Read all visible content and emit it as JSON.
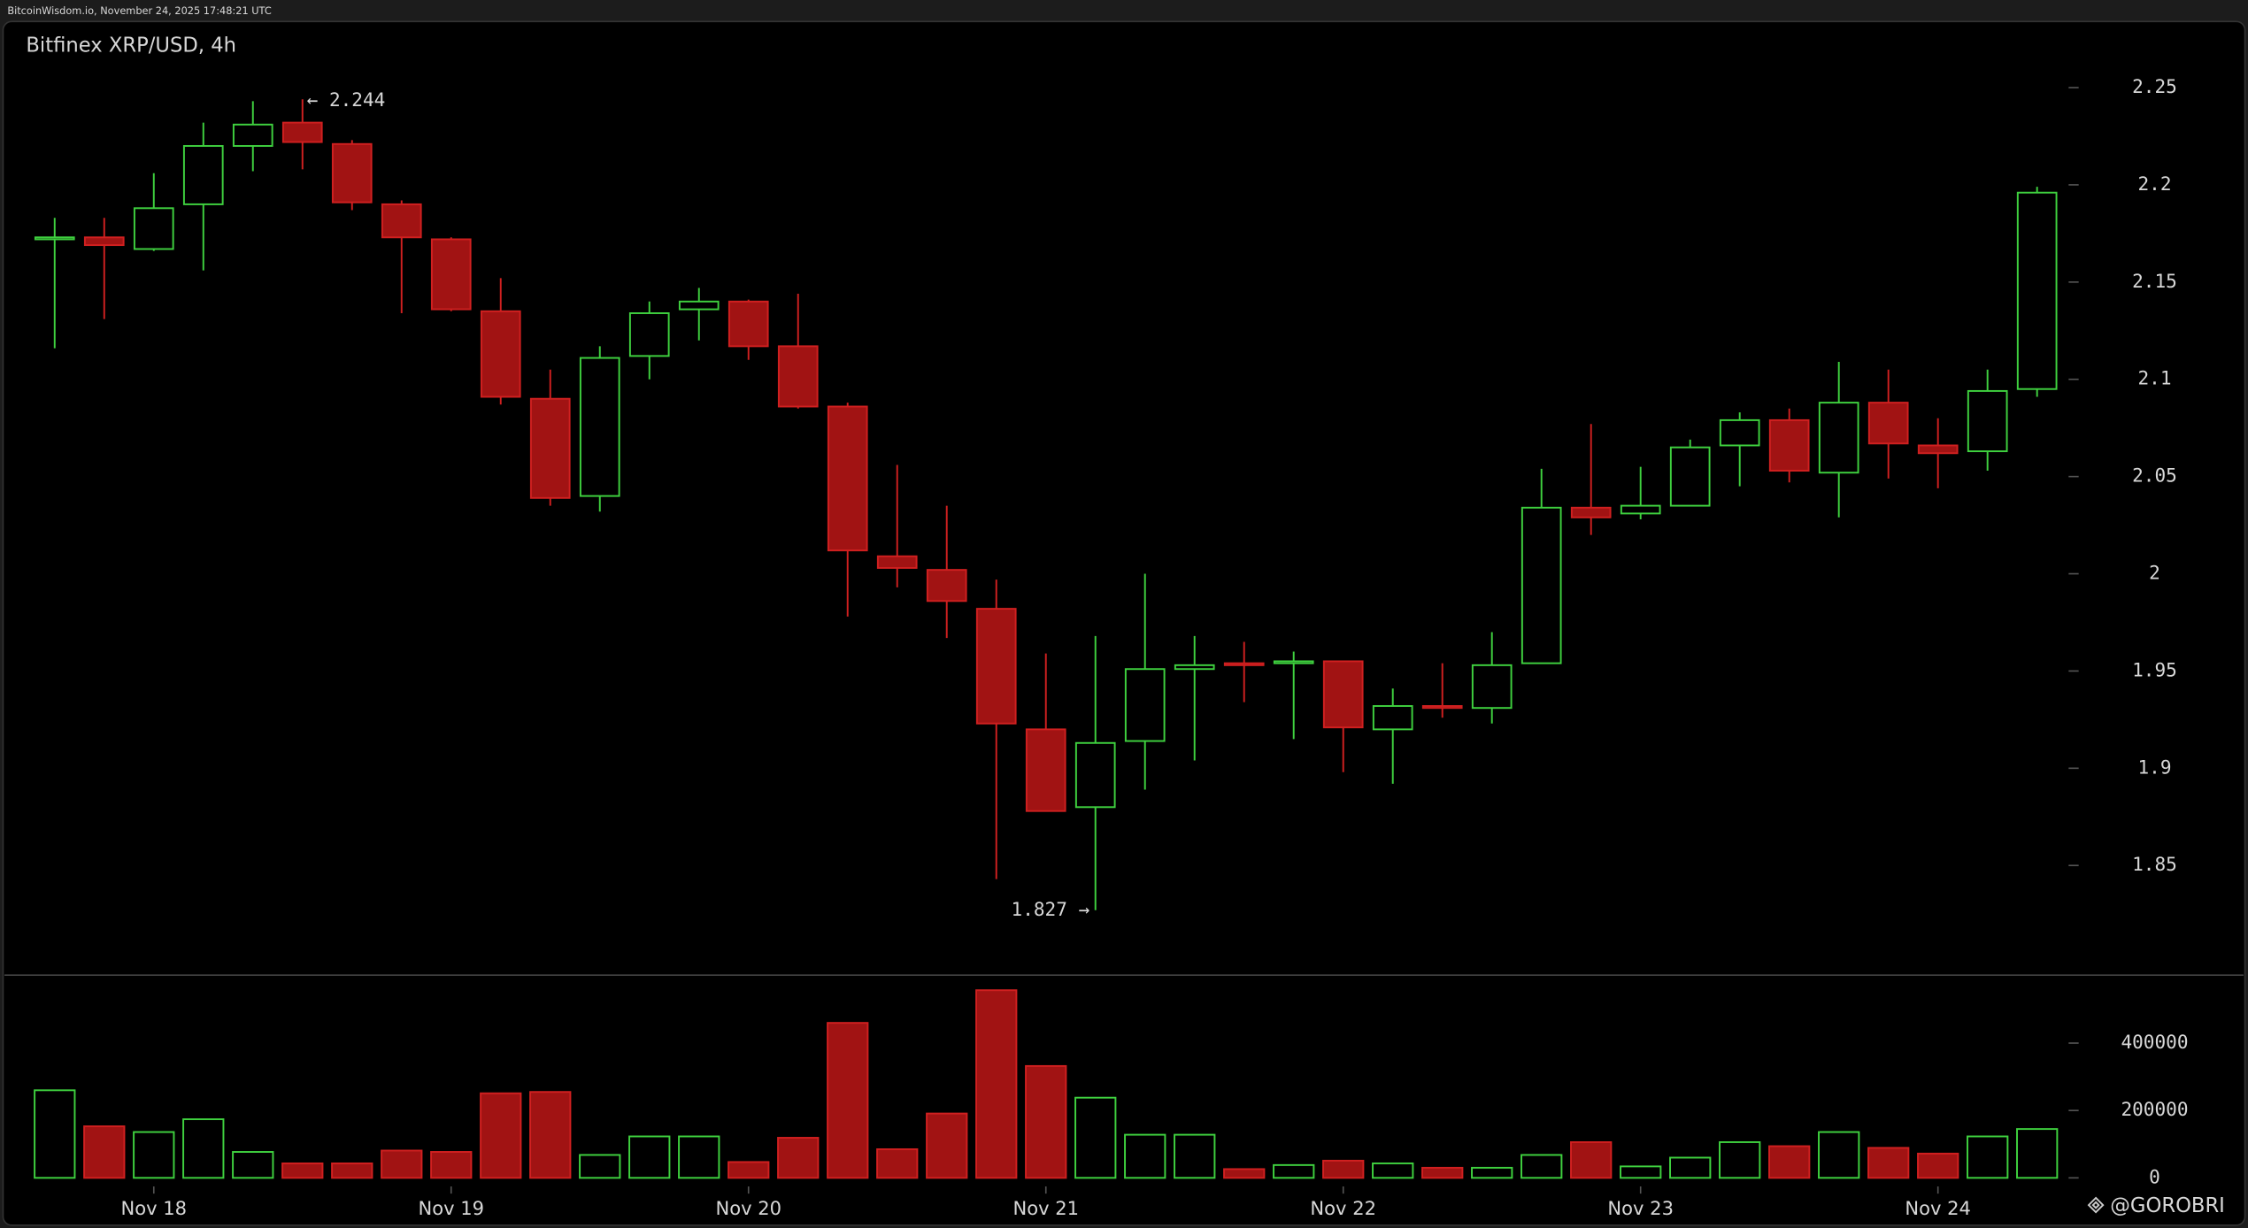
{
  "header": "BitcoinWisdom.io, November 24, 2025 17:48:21 UTC",
  "watermark": "@GOROBRI",
  "chart_data": {
    "type": "candlestick",
    "title": "Bitfinex XRP/USD, 4h",
    "categories": [
      null,
      null,
      "Nov 18",
      null,
      null,
      null,
      null,
      null,
      "Nov 19",
      null,
      null,
      null,
      null,
      null,
      "Nov 20",
      null,
      null,
      null,
      null,
      null,
      "Nov 21",
      null,
      null,
      null,
      null,
      null,
      "Nov 22",
      null,
      null,
      null,
      null,
      null,
      "Nov 23",
      null,
      null,
      null,
      null,
      null,
      "Nov 24",
      null,
      null
    ],
    "open": [
      2.172,
      2.173,
      2.167,
      2.19,
      2.22,
      2.232,
      2.221,
      2.19,
      2.172,
      2.135,
      2.09,
      2.04,
      2.112,
      2.136,
      2.14,
      2.117,
      2.086,
      2.009,
      2.002,
      1.982,
      1.92,
      1.88,
      1.914,
      1.951,
      1.954,
      1.954,
      1.955,
      1.92,
      1.932,
      1.931,
      1.954,
      2.034,
      2.031,
      2.035,
      2.066,
      2.079,
      2.052,
      2.088,
      2.066,
      2.063,
      2.095
    ],
    "high": [
      2.183,
      2.183,
      2.206,
      2.232,
      2.243,
      2.244,
      2.223,
      2.192,
      2.173,
      2.152,
      2.105,
      2.117,
      2.14,
      2.147,
      2.141,
      2.144,
      2.088,
      2.056,
      2.035,
      1.997,
      1.959,
      1.968,
      2.0,
      1.968,
      1.965,
      1.96,
      1.955,
      1.941,
      1.954,
      1.97,
      2.054,
      2.077,
      2.055,
      2.069,
      2.083,
      2.085,
      2.109,
      2.105,
      2.08,
      2.105,
      2.199
    ],
    "low": [
      2.116,
      2.131,
      2.166,
      2.156,
      2.207,
      2.208,
      2.187,
      2.134,
      2.135,
      2.087,
      2.035,
      2.032,
      2.1,
      2.12,
      2.11,
      2.085,
      1.978,
      1.993,
      1.967,
      1.843,
      1.878,
      1.827,
      1.889,
      1.904,
      1.934,
      1.915,
      1.898,
      1.892,
      1.926,
      1.923,
      1.954,
      2.02,
      2.028,
      2.035,
      2.045,
      2.047,
      2.029,
      2.049,
      2.044,
      2.053,
      2.091
    ],
    "close": [
      2.173,
      2.169,
      2.188,
      2.22,
      2.231,
      2.222,
      2.191,
      2.173,
      2.136,
      2.091,
      2.039,
      2.111,
      2.134,
      2.14,
      2.117,
      2.086,
      2.012,
      2.003,
      1.986,
      1.923,
      1.878,
      1.913,
      1.951,
      1.953,
      1.953,
      1.955,
      1.921,
      1.932,
      1.931,
      1.953,
      2.034,
      2.029,
      2.035,
      2.065,
      2.079,
      2.053,
      2.088,
      2.067,
      2.062,
      2.094,
      2.196
    ],
    "volume": [
      260000,
      153000,
      136000,
      174000,
      77000,
      43000,
      43000,
      81000,
      77000,
      251000,
      255000,
      68000,
      123000,
      123000,
      47000,
      119000,
      460000,
      85000,
      191000,
      557000,
      332000,
      238000,
      128000,
      128000,
      26000,
      38000,
      51000,
      43000,
      30000,
      30000,
      68000,
      106000,
      34000,
      60000,
      106000,
      94000,
      136000,
      89000,
      72000,
      123000,
      145000
    ],
    "high_label": "← 2.244",
    "low_label": "1.827 →",
    "ylim": [
      1.794,
      2.284
    ],
    "yticks": [
      1.85,
      1.9,
      1.95,
      2,
      2.05,
      2.1,
      2.15,
      2.2,
      2.25
    ],
    "y2lim": [
      -34000,
      604000
    ],
    "y2ticks": [
      0,
      200000,
      400000
    ],
    "up_color": "#3fd13f",
    "down_color": "#a11313"
  }
}
